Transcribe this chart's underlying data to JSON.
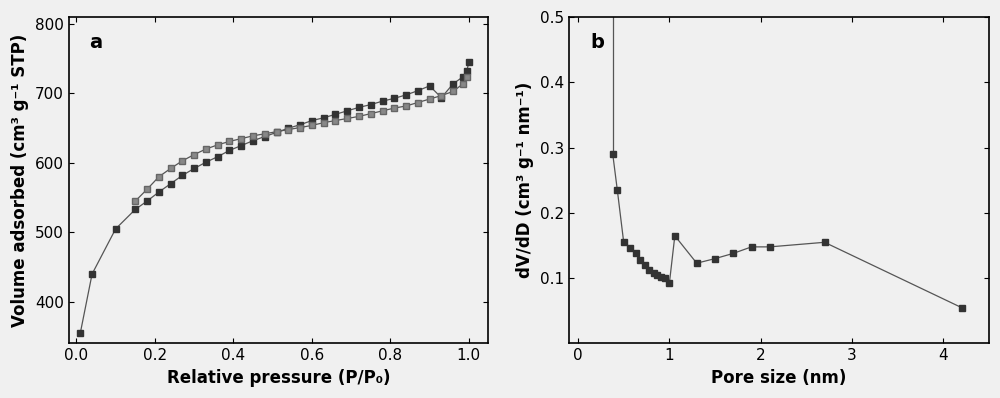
{
  "plot_a": {
    "label": "a",
    "xlabel": "Relative pressure (P/P₀)",
    "ylabel": "Volume adsorbed (cm³ g⁻¹ STP)",
    "xlim": [
      -0.02,
      1.05
    ],
    "ylim": [
      340,
      810
    ],
    "yticks": [
      400,
      500,
      600,
      700,
      800
    ],
    "xticks": [
      0.0,
      0.2,
      0.4,
      0.6,
      0.8,
      1.0
    ],
    "adsorption_x": [
      0.01,
      0.04,
      0.1,
      0.15,
      0.18,
      0.21,
      0.24,
      0.27,
      0.3,
      0.33,
      0.36,
      0.39,
      0.42,
      0.45,
      0.48,
      0.51,
      0.54,
      0.57,
      0.6,
      0.63,
      0.66,
      0.69,
      0.72,
      0.75,
      0.78,
      0.81,
      0.84,
      0.87,
      0.9,
      0.93,
      0.96,
      0.985,
      0.995,
      1.0
    ],
    "adsorption_y": [
      355,
      440,
      505,
      533,
      545,
      558,
      570,
      582,
      592,
      601,
      609,
      618,
      625,
      632,
      638,
      644,
      650,
      655,
      661,
      665,
      670,
      675,
      680,
      684,
      689,
      693,
      698,
      704,
      711,
      694,
      714,
      724,
      733,
      745
    ],
    "desorption_x": [
      0.995,
      0.985,
      0.96,
      0.93,
      0.9,
      0.87,
      0.84,
      0.81,
      0.78,
      0.75,
      0.72,
      0.69,
      0.66,
      0.63,
      0.6,
      0.57,
      0.54,
      0.51,
      0.48,
      0.45,
      0.42,
      0.39,
      0.36,
      0.33,
      0.3,
      0.27,
      0.24,
      0.21,
      0.18,
      0.15
    ],
    "desorption_y": [
      724,
      714,
      703,
      697,
      692,
      687,
      682,
      679,
      675,
      671,
      667,
      664,
      661,
      658,
      654,
      651,
      648,
      645,
      642,
      639,
      635,
      631,
      626,
      620,
      612,
      603,
      592,
      580,
      562,
      545
    ]
  },
  "plot_b": {
    "label": "b",
    "xlabel": "Pore size (nm)",
    "ylabel": "dV/dD (cm³ g⁻¹ nm⁻¹)",
    "xlim": [
      -0.1,
      4.5
    ],
    "ylim": [
      0.0,
      0.5
    ],
    "yticks": [
      0.1,
      0.2,
      0.3,
      0.4,
      0.5
    ],
    "xticks": [
      0,
      1,
      2,
      3,
      4
    ],
    "line_x": [
      0.38,
      0.38
    ],
    "line_y": [
      0.29,
      0.5
    ],
    "x": [
      0.38,
      0.43,
      0.5,
      0.57,
      0.63,
      0.68,
      0.73,
      0.78,
      0.83,
      0.87,
      0.91,
      0.95,
      1.0,
      1.06,
      1.3,
      1.5,
      1.7,
      1.9,
      2.1,
      2.7,
      4.2
    ],
    "y": [
      0.29,
      0.235,
      0.155,
      0.147,
      0.138,
      0.128,
      0.12,
      0.113,
      0.108,
      0.105,
      0.102,
      0.1,
      0.092,
      0.165,
      0.123,
      0.13,
      0.138,
      0.148,
      0.148,
      0.155,
      0.055
    ]
  },
  "line_color": "#555555",
  "marker_color": "#333333",
  "desorption_marker_color": "#888888",
  "bg_color": "#f0f0f0",
  "marker": "s",
  "marker_size": 4.5,
  "line_width": 0.9,
  "label_fontsize": 14,
  "tick_fontsize": 11,
  "axis_label_fontsize": 12
}
